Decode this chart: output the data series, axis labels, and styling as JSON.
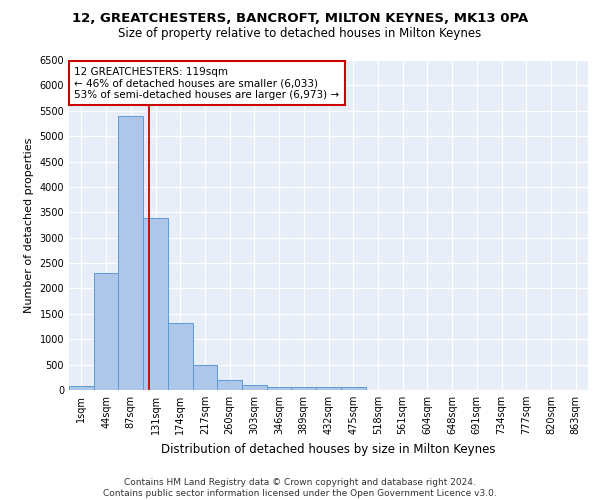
{
  "title": "12, GREATCHESTERS, BANCROFT, MILTON KEYNES, MK13 0PA",
  "subtitle": "Size of property relative to detached houses in Milton Keynes",
  "xlabel": "Distribution of detached houses by size in Milton Keynes",
  "ylabel": "Number of detached properties",
  "bin_labels": [
    "1sqm",
    "44sqm",
    "87sqm",
    "131sqm",
    "174sqm",
    "217sqm",
    "260sqm",
    "303sqm",
    "346sqm",
    "389sqm",
    "432sqm",
    "475sqm",
    "518sqm",
    "561sqm",
    "604sqm",
    "648sqm",
    "691sqm",
    "734sqm",
    "777sqm",
    "820sqm",
    "863sqm"
  ],
  "bar_values": [
    70,
    2300,
    5400,
    3380,
    1320,
    490,
    200,
    100,
    65,
    50,
    50,
    50,
    0,
    0,
    0,
    0,
    0,
    0,
    0,
    0,
    0
  ],
  "bar_color": "#aec6e8",
  "bar_edgecolor": "#5b9bd5",
  "background_color": "#e8eef7",
  "grid_color": "#ffffff",
  "annotation_text": "12 GREATCHESTERS: 119sqm\n← 46% of detached houses are smaller (6,033)\n53% of semi-detached houses are larger (6,973) →",
  "annotation_box_color": "#ffffff",
  "annotation_box_edgecolor": "#cc0000",
  "footer_text": "Contains HM Land Registry data © Crown copyright and database right 2024.\nContains public sector information licensed under the Open Government Licence v3.0.",
  "ylim": [
    0,
    6500
  ],
  "title_fontsize": 9.5,
  "subtitle_fontsize": 8.5,
  "xlabel_fontsize": 8.5,
  "ylabel_fontsize": 8,
  "tick_fontsize": 7,
  "annotation_fontsize": 7.5,
  "footer_fontsize": 6.5
}
